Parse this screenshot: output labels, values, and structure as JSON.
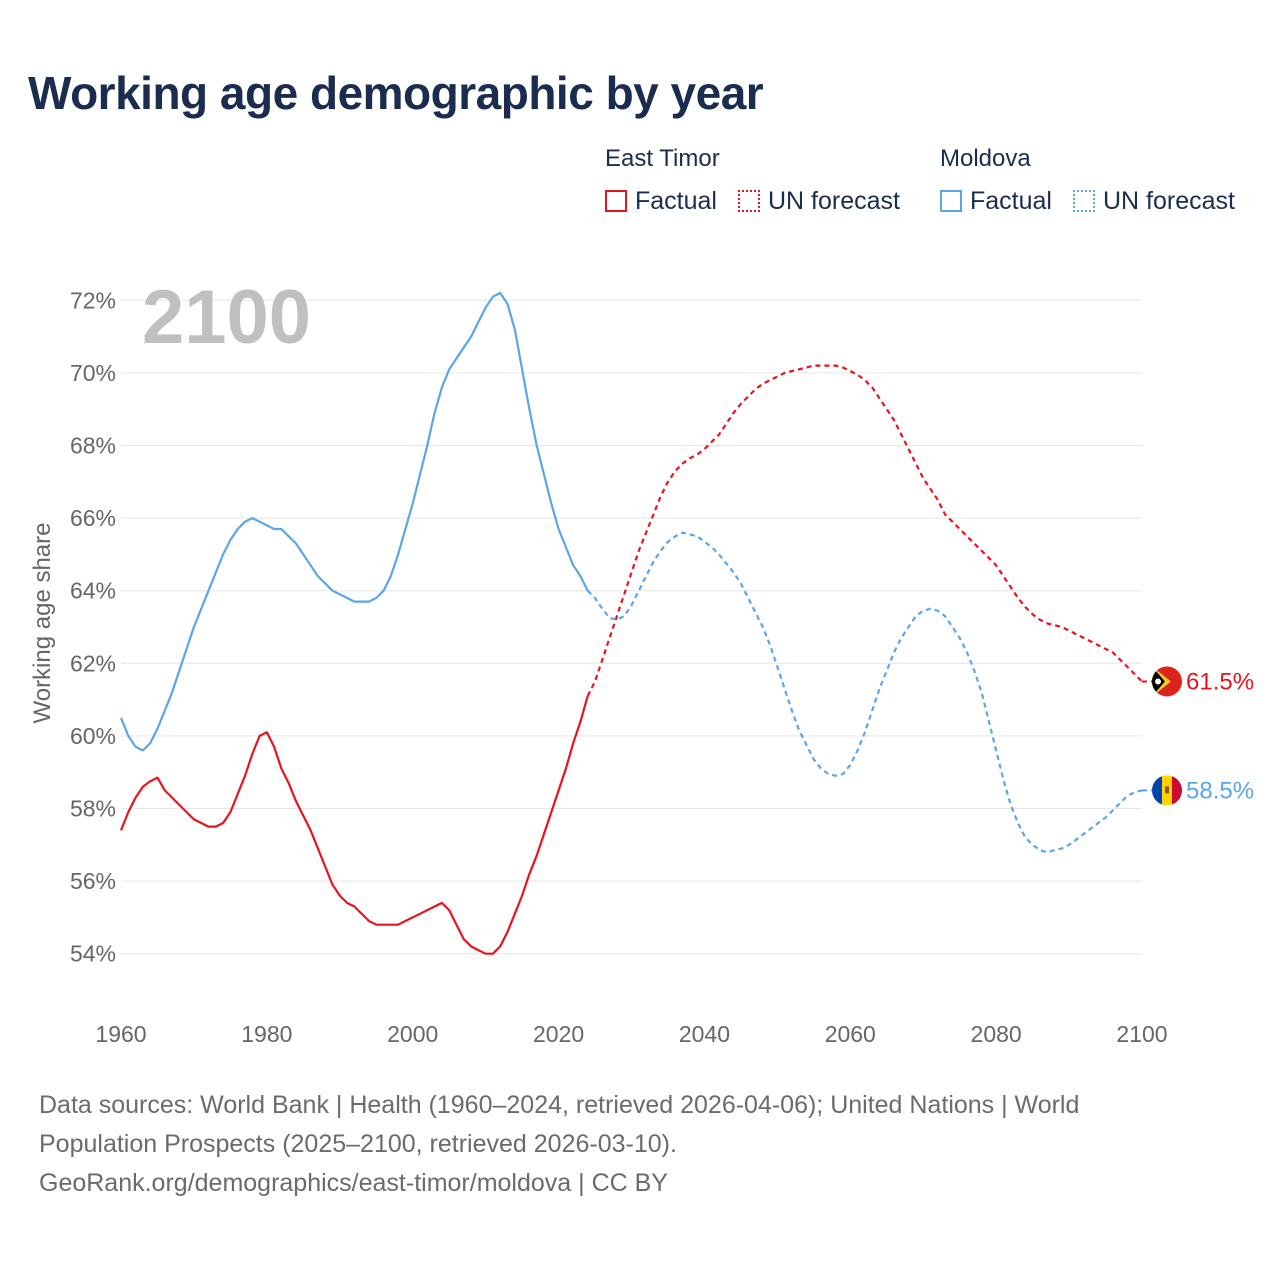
{
  "title": "Working age demographic by year",
  "legend": {
    "groups": [
      {
        "name": "East Timor",
        "factual": "Factual",
        "forecast": "UN forecast"
      },
      {
        "name": "Moldova",
        "factual": "Factual",
        "forecast": "UN forecast"
      }
    ]
  },
  "year_watermark": "2100",
  "footer": {
    "line1": "Data sources: World Bank | Health (1960–2024, retrieved 2026-04-06); United Nations | World",
    "line2": "Population Prospects (2025–2100, retrieved 2026-03-10).",
    "line3": "GeoRank.org/demographics/east-timor/moldova | CC BY"
  },
  "colors": {
    "east_timor": "#e8141c",
    "moldova": "#5aa6e6",
    "grid": "#e6e6e6",
    "tick": "#666666"
  },
  "chart_data": {
    "type": "line",
    "title": "Working age demographic by year",
    "xlabel": "",
    "ylabel": "Working age share",
    "xlim": [
      1960,
      2100
    ],
    "ylim": [
      53,
      73
    ],
    "x_ticks": [
      1960,
      1980,
      2000,
      2020,
      2040,
      2060,
      2080,
      2100
    ],
    "y_ticks": [
      54,
      56,
      58,
      60,
      62,
      64,
      66,
      68,
      70,
      72
    ],
    "y_tick_suffix": "%",
    "factual_range": [
      1960,
      2024
    ],
    "forecast_range": [
      2024,
      2100
    ],
    "series": [
      {
        "name": "East Timor",
        "color": "#e8141c",
        "end_label": "61.5%",
        "flag": "east-timor-flag",
        "points": [
          [
            1960,
            57.4
          ],
          [
            1961,
            57.9
          ],
          [
            1962,
            58.3
          ],
          [
            1963,
            58.6
          ],
          [
            1964,
            58.75
          ],
          [
            1965,
            58.85
          ],
          [
            1966,
            58.5
          ],
          [
            1967,
            58.3
          ],
          [
            1968,
            58.1
          ],
          [
            1969,
            57.9
          ],
          [
            1970,
            57.7
          ],
          [
            1971,
            57.6
          ],
          [
            1972,
            57.5
          ],
          [
            1973,
            57.5
          ],
          [
            1974,
            57.6
          ],
          [
            1975,
            57.9
          ],
          [
            1976,
            58.4
          ],
          [
            1977,
            58.9
          ],
          [
            1978,
            59.5
          ],
          [
            1979,
            60.0
          ],
          [
            1980,
            60.1
          ],
          [
            1981,
            59.7
          ],
          [
            1982,
            59.1
          ],
          [
            1983,
            58.7
          ],
          [
            1984,
            58.2
          ],
          [
            1985,
            57.8
          ],
          [
            1986,
            57.4
          ],
          [
            1987,
            56.9
          ],
          [
            1988,
            56.4
          ],
          [
            1989,
            55.9
          ],
          [
            1990,
            55.6
          ],
          [
            1991,
            55.4
          ],
          [
            1992,
            55.3
          ],
          [
            1993,
            55.1
          ],
          [
            1994,
            54.9
          ],
          [
            1995,
            54.8
          ],
          [
            1996,
            54.8
          ],
          [
            1997,
            54.8
          ],
          [
            1998,
            54.8
          ],
          [
            1999,
            54.9
          ],
          [
            2000,
            55.0
          ],
          [
            2001,
            55.1
          ],
          [
            2002,
            55.2
          ],
          [
            2003,
            55.3
          ],
          [
            2004,
            55.4
          ],
          [
            2005,
            55.2
          ],
          [
            2006,
            54.8
          ],
          [
            2007,
            54.4
          ],
          [
            2008,
            54.2
          ],
          [
            2009,
            54.1
          ],
          [
            2010,
            54.0
          ],
          [
            2011,
            54.0
          ],
          [
            2012,
            54.2
          ],
          [
            2013,
            54.6
          ],
          [
            2014,
            55.1
          ],
          [
            2015,
            55.6
          ],
          [
            2016,
            56.2
          ],
          [
            2017,
            56.7
          ],
          [
            2018,
            57.3
          ],
          [
            2019,
            57.9
          ],
          [
            2020,
            58.5
          ],
          [
            2021,
            59.1
          ],
          [
            2022,
            59.8
          ],
          [
            2023,
            60.4
          ],
          [
            2024,
            61.1
          ],
          [
            2025,
            61.5
          ],
          [
            2026,
            62.1
          ],
          [
            2027,
            62.7
          ],
          [
            2028,
            63.3
          ],
          [
            2029,
            63.9
          ],
          [
            2030,
            64.5
          ],
          [
            2031,
            65.1
          ],
          [
            2032,
            65.6
          ],
          [
            2033,
            66.1
          ],
          [
            2034,
            66.6
          ],
          [
            2035,
            67.0
          ],
          [
            2036,
            67.3
          ],
          [
            2037,
            67.5
          ],
          [
            2038,
            67.65
          ],
          [
            2039,
            67.75
          ],
          [
            2040,
            67.9
          ],
          [
            2041,
            68.1
          ],
          [
            2042,
            68.3
          ],
          [
            2043,
            68.6
          ],
          [
            2044,
            68.9
          ],
          [
            2045,
            69.15
          ],
          [
            2046,
            69.35
          ],
          [
            2047,
            69.55
          ],
          [
            2048,
            69.7
          ],
          [
            2049,
            69.8
          ],
          [
            2050,
            69.9
          ],
          [
            2051,
            70.0
          ],
          [
            2052,
            70.05
          ],
          [
            2053,
            70.1
          ],
          [
            2054,
            70.15
          ],
          [
            2055,
            70.2
          ],
          [
            2056,
            70.2
          ],
          [
            2057,
            70.2
          ],
          [
            2058,
            70.2
          ],
          [
            2059,
            70.15
          ],
          [
            2060,
            70.05
          ],
          [
            2061,
            69.95
          ],
          [
            2062,
            69.8
          ],
          [
            2063,
            69.6
          ],
          [
            2064,
            69.3
          ],
          [
            2065,
            69.0
          ],
          [
            2066,
            68.7
          ],
          [
            2067,
            68.3
          ],
          [
            2068,
            67.9
          ],
          [
            2069,
            67.5
          ],
          [
            2070,
            67.1
          ],
          [
            2071,
            66.8
          ],
          [
            2072,
            66.5
          ],
          [
            2073,
            66.1
          ],
          [
            2074,
            65.9
          ],
          [
            2075,
            65.7
          ],
          [
            2076,
            65.5
          ],
          [
            2077,
            65.3
          ],
          [
            2078,
            65.1
          ],
          [
            2079,
            64.9
          ],
          [
            2080,
            64.7
          ],
          [
            2081,
            64.4
          ],
          [
            2082,
            64.1
          ],
          [
            2083,
            63.8
          ],
          [
            2084,
            63.55
          ],
          [
            2085,
            63.35
          ],
          [
            2086,
            63.2
          ],
          [
            2087,
            63.1
          ],
          [
            2088,
            63.05
          ],
          [
            2089,
            63.0
          ],
          [
            2090,
            62.9
          ],
          [
            2091,
            62.8
          ],
          [
            2092,
            62.7
          ],
          [
            2093,
            62.6
          ],
          [
            2094,
            62.5
          ],
          [
            2095,
            62.4
          ],
          [
            2096,
            62.3
          ],
          [
            2097,
            62.1
          ],
          [
            2098,
            61.9
          ],
          [
            2099,
            61.7
          ],
          [
            2100,
            61.5
          ]
        ]
      },
      {
        "name": "Moldova",
        "color": "#5aa6e6",
        "end_label": "58.5%",
        "flag": "moldova-flag",
        "points": [
          [
            1960,
            60.5
          ],
          [
            1961,
            60.0
          ],
          [
            1962,
            59.7
          ],
          [
            1963,
            59.6
          ],
          [
            1964,
            59.8
          ],
          [
            1965,
            60.2
          ],
          [
            1966,
            60.7
          ],
          [
            1967,
            61.2
          ],
          [
            1968,
            61.8
          ],
          [
            1969,
            62.4
          ],
          [
            1970,
            63.0
          ],
          [
            1971,
            63.5
          ],
          [
            1972,
            64.0
          ],
          [
            1973,
            64.5
          ],
          [
            1974,
            65.0
          ],
          [
            1975,
            65.4
          ],
          [
            1976,
            65.7
          ],
          [
            1977,
            65.9
          ],
          [
            1978,
            66.0
          ],
          [
            1979,
            65.9
          ],
          [
            1980,
            65.8
          ],
          [
            1981,
            65.7
          ],
          [
            1982,
            65.7
          ],
          [
            1983,
            65.5
          ],
          [
            1984,
            65.3
          ],
          [
            1985,
            65.0
          ],
          [
            1986,
            64.7
          ],
          [
            1987,
            64.4
          ],
          [
            1988,
            64.2
          ],
          [
            1989,
            64.0
          ],
          [
            1990,
            63.9
          ],
          [
            1991,
            63.8
          ],
          [
            1992,
            63.7
          ],
          [
            1993,
            63.7
          ],
          [
            1994,
            63.7
          ],
          [
            1995,
            63.8
          ],
          [
            1996,
            64.0
          ],
          [
            1997,
            64.4
          ],
          [
            1998,
            65.0
          ],
          [
            1999,
            65.7
          ],
          [
            2000,
            66.4
          ],
          [
            2001,
            67.2
          ],
          [
            2002,
            68.0
          ],
          [
            2003,
            68.9
          ],
          [
            2004,
            69.6
          ],
          [
            2005,
            70.1
          ],
          [
            2006,
            70.4
          ],
          [
            2007,
            70.7
          ],
          [
            2008,
            71.0
          ],
          [
            2009,
            71.4
          ],
          [
            2010,
            71.8
          ],
          [
            2011,
            72.1
          ],
          [
            2012,
            72.2
          ],
          [
            2013,
            71.9
          ],
          [
            2014,
            71.2
          ],
          [
            2015,
            70.1
          ],
          [
            2016,
            69.0
          ],
          [
            2017,
            68.0
          ],
          [
            2018,
            67.2
          ],
          [
            2019,
            66.4
          ],
          [
            2020,
            65.7
          ],
          [
            2021,
            65.2
          ],
          [
            2022,
            64.7
          ],
          [
            2023,
            64.4
          ],
          [
            2024,
            64.0
          ],
          [
            2025,
            63.8
          ],
          [
            2026,
            63.5
          ],
          [
            2027,
            63.25
          ],
          [
            2028,
            63.2
          ],
          [
            2029,
            63.3
          ],
          [
            2030,
            63.6
          ],
          [
            2031,
            64.0
          ],
          [
            2032,
            64.4
          ],
          [
            2033,
            64.8
          ],
          [
            2034,
            65.1
          ],
          [
            2035,
            65.35
          ],
          [
            2036,
            65.5
          ],
          [
            2037,
            65.6
          ],
          [
            2038,
            65.55
          ],
          [
            2039,
            65.5
          ],
          [
            2040,
            65.35
          ],
          [
            2041,
            65.2
          ],
          [
            2042,
            65.0
          ],
          [
            2043,
            64.75
          ],
          [
            2044,
            64.5
          ],
          [
            2045,
            64.2
          ],
          [
            2046,
            63.8
          ],
          [
            2047,
            63.4
          ],
          [
            2048,
            63.0
          ],
          [
            2049,
            62.5
          ],
          [
            2050,
            61.9
          ],
          [
            2051,
            61.3
          ],
          [
            2052,
            60.7
          ],
          [
            2053,
            60.15
          ],
          [
            2054,
            59.75
          ],
          [
            2055,
            59.35
          ],
          [
            2056,
            59.1
          ],
          [
            2057,
            58.95
          ],
          [
            2058,
            58.9
          ],
          [
            2059,
            58.95
          ],
          [
            2060,
            59.2
          ],
          [
            2061,
            59.6
          ],
          [
            2062,
            60.1
          ],
          [
            2063,
            60.7
          ],
          [
            2064,
            61.3
          ],
          [
            2065,
            61.8
          ],
          [
            2066,
            62.3
          ],
          [
            2067,
            62.7
          ],
          [
            2068,
            63.0
          ],
          [
            2069,
            63.3
          ],
          [
            2070,
            63.45
          ],
          [
            2071,
            63.5
          ],
          [
            2072,
            63.45
          ],
          [
            2073,
            63.3
          ],
          [
            2074,
            63.0
          ],
          [
            2075,
            62.7
          ],
          [
            2076,
            62.3
          ],
          [
            2077,
            61.8
          ],
          [
            2078,
            61.2
          ],
          [
            2079,
            60.4
          ],
          [
            2080,
            59.6
          ],
          [
            2081,
            58.8
          ],
          [
            2082,
            58.1
          ],
          [
            2083,
            57.6
          ],
          [
            2084,
            57.2
          ],
          [
            2085,
            57.0
          ],
          [
            2086,
            56.85
          ],
          [
            2087,
            56.8
          ],
          [
            2088,
            56.85
          ],
          [
            2089,
            56.9
          ],
          [
            2090,
            57.0
          ],
          [
            2091,
            57.15
          ],
          [
            2092,
            57.3
          ],
          [
            2093,
            57.45
          ],
          [
            2094,
            57.6
          ],
          [
            2095,
            57.75
          ],
          [
            2096,
            57.95
          ],
          [
            2097,
            58.15
          ],
          [
            2098,
            58.35
          ],
          [
            2099,
            58.45
          ],
          [
            2100,
            58.5
          ]
        ]
      }
    ]
  }
}
